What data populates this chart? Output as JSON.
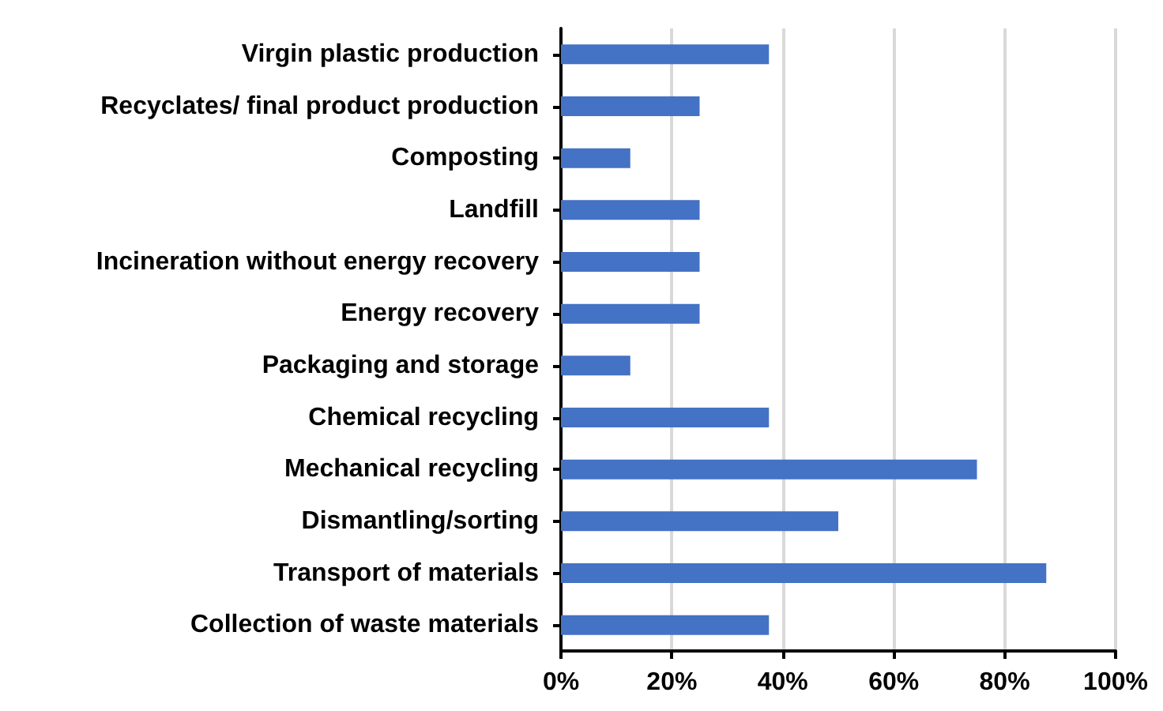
{
  "chart_data": {
    "type": "bar",
    "orientation": "horizontal",
    "categories": [
      "Virgin plastic production",
      "Recyclates/ final product production",
      "Composting",
      "Landfill",
      "Incineration without energy recovery",
      "Energy recovery",
      "Packaging and storage",
      "Chemical recycling",
      "Mechanical recycling",
      "Dismantling/sorting",
      "Transport of materials",
      "Collection of waste materials"
    ],
    "values": [
      37.5,
      25,
      12.5,
      25,
      25,
      25,
      12.5,
      37.5,
      75,
      50,
      87.5,
      37.5
    ],
    "color": "#4472c4",
    "xlim": [
      0,
      100
    ],
    "xticks": [
      {
        "value": 0,
        "label": "0%"
      },
      {
        "value": 20,
        "label": "20%"
      },
      {
        "value": 40,
        "label": "40%"
      },
      {
        "value": 60,
        "label": "60%"
      },
      {
        "value": 80,
        "label": "80%"
      },
      {
        "value": 100,
        "label": "100%"
      }
    ],
    "grid": "x"
  }
}
